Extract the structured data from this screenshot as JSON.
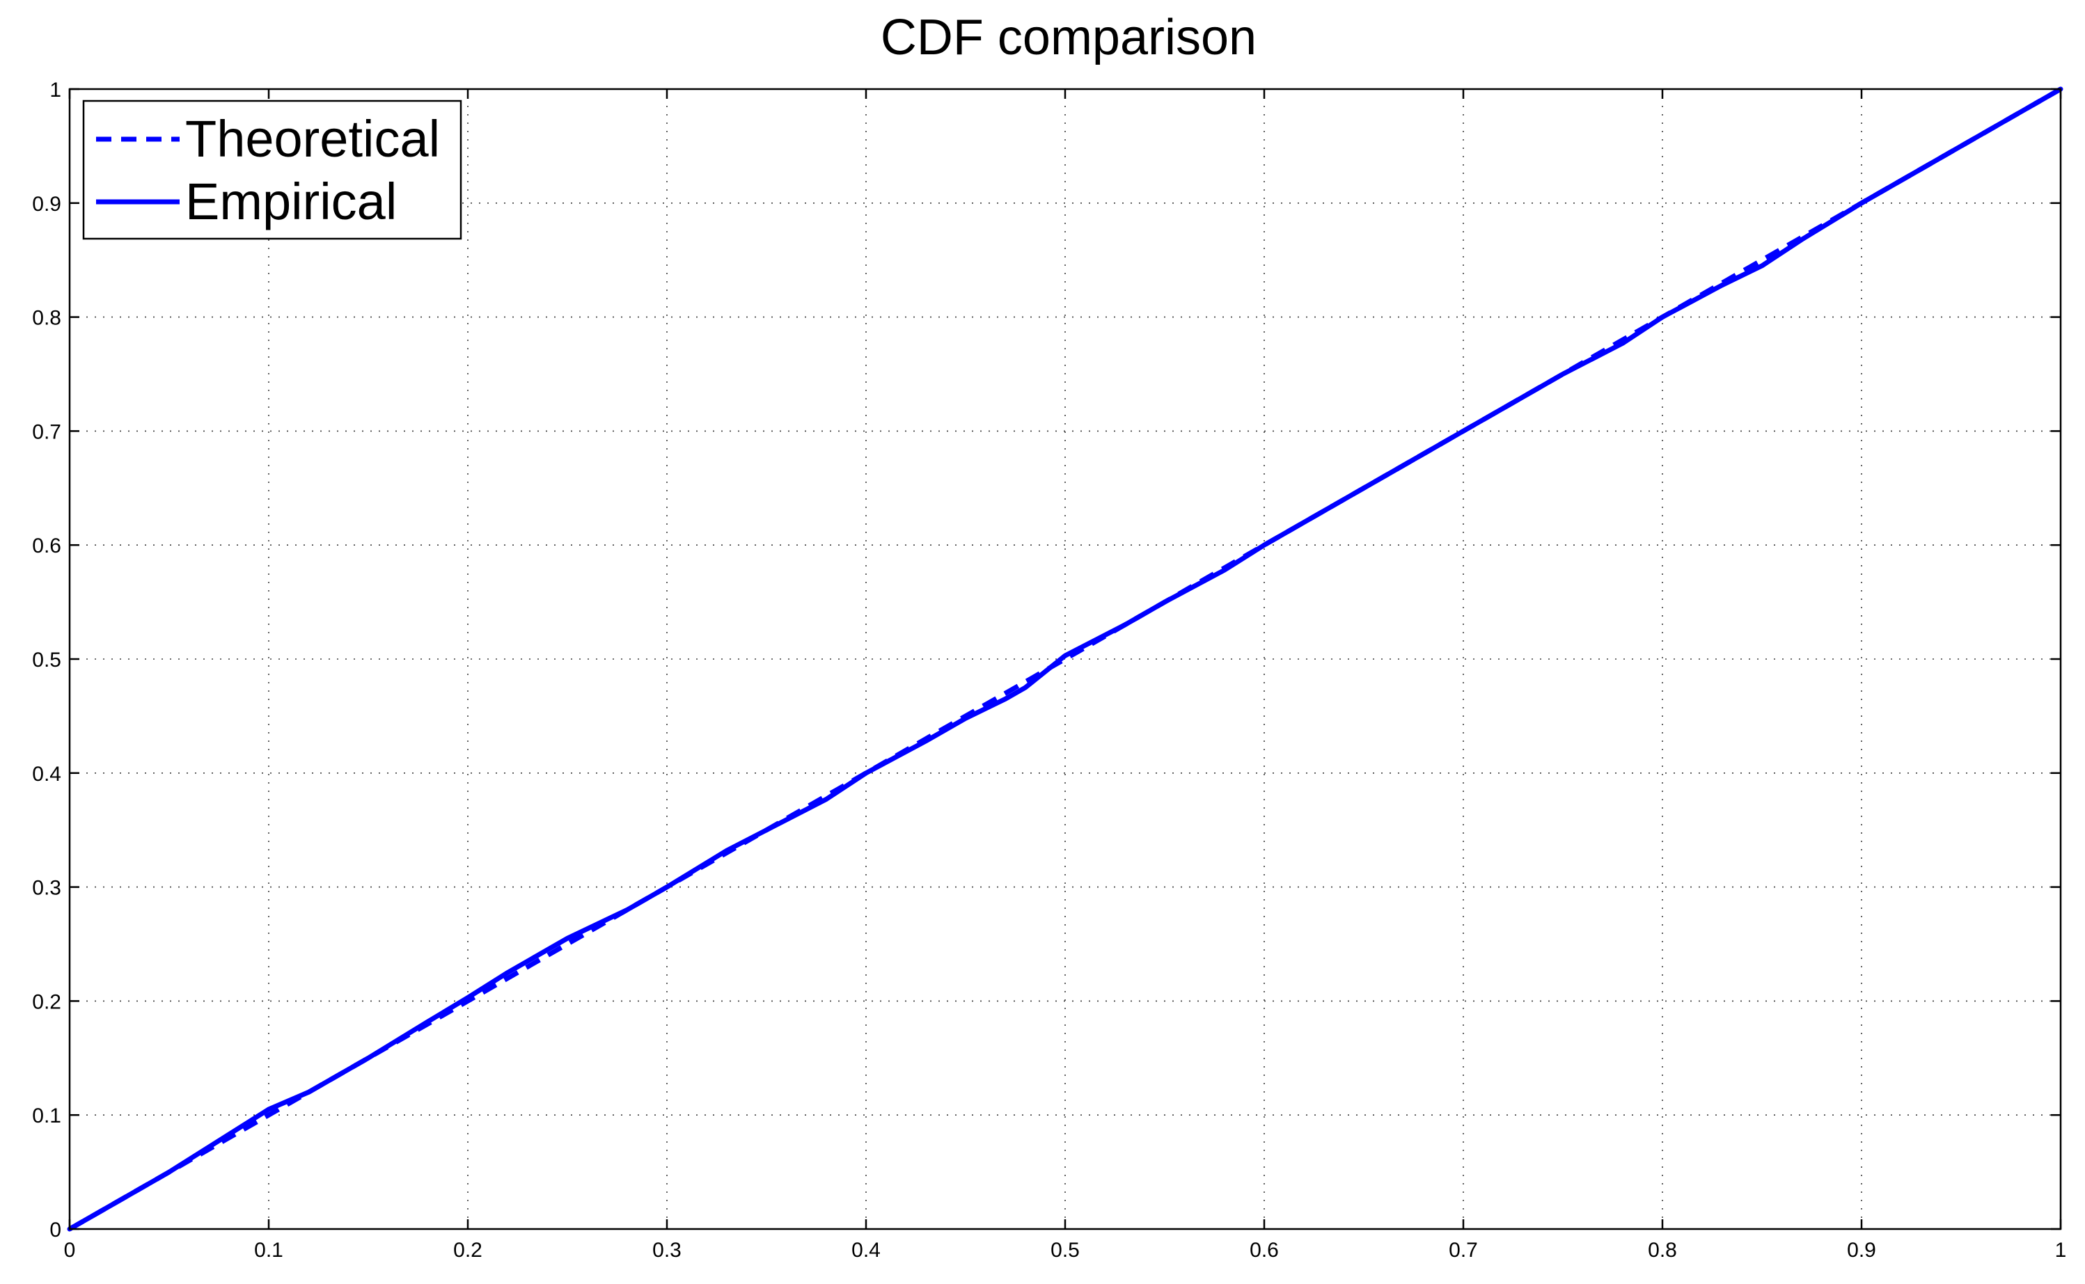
{
  "chart_data": {
    "type": "line",
    "title": "CDF comparison",
    "xlabel": "",
    "ylabel": "",
    "xlim": [
      0,
      1
    ],
    "ylim": [
      0,
      1
    ],
    "grid": true,
    "legend_position": "top-left",
    "x_ticks": [
      "0",
      "0.1",
      "0.2",
      "0.3",
      "0.4",
      "0.5",
      "0.6",
      "0.7",
      "0.8",
      "0.9",
      "1"
    ],
    "y_ticks": [
      "0",
      "0.1",
      "0.2",
      "0.3",
      "0.4",
      "0.5",
      "0.6",
      "0.7",
      "0.8",
      "0.9",
      "1"
    ],
    "series": [
      {
        "name": "Theoretical",
        "style": "dashed",
        "color": "#0000ff",
        "x": [
          0,
          1
        ],
        "y": [
          0,
          1
        ]
      },
      {
        "name": "Empirical",
        "style": "solid",
        "color": "#0000ff",
        "x": [
          0,
          0.05,
          0.1,
          0.12,
          0.15,
          0.18,
          0.2,
          0.22,
          0.25,
          0.28,
          0.3,
          0.33,
          0.35,
          0.38,
          0.4,
          0.43,
          0.45,
          0.47,
          0.48,
          0.5,
          0.53,
          0.55,
          0.58,
          0.6,
          0.63,
          0.65,
          0.68,
          0.7,
          0.73,
          0.75,
          0.78,
          0.8,
          0.83,
          0.85,
          0.87,
          0.9,
          0.93,
          0.95,
          1.0
        ],
        "y": [
          0,
          0.05,
          0.105,
          0.12,
          0.15,
          0.182,
          0.203,
          0.225,
          0.255,
          0.28,
          0.3,
          0.332,
          0.35,
          0.377,
          0.4,
          0.428,
          0.448,
          0.465,
          0.475,
          0.503,
          0.53,
          0.55,
          0.578,
          0.6,
          0.63,
          0.65,
          0.68,
          0.7,
          0.73,
          0.75,
          0.777,
          0.8,
          0.828,
          0.845,
          0.868,
          0.9,
          0.93,
          0.95,
          1.0
        ]
      }
    ]
  }
}
